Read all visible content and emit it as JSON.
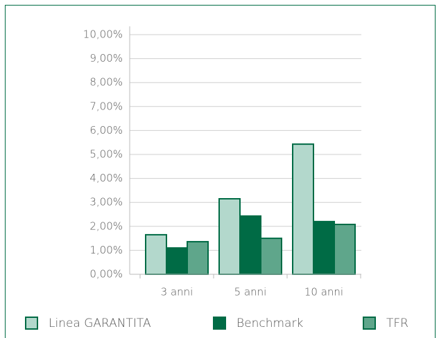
{
  "chart_data": {
    "type": "bar",
    "categories": [
      "3 anni",
      "5 anni",
      "10 anni"
    ],
    "series": [
      {
        "name": "Linea GARANTITA",
        "color": "#b3d8cc",
        "values": [
          1.65,
          3.15,
          5.43
        ]
      },
      {
        "name": "Benchmark",
        "color": "#006b45",
        "values": [
          1.1,
          2.43,
          2.2
        ]
      },
      {
        "name": "TFR",
        "color": "#5fa68b",
        "values": [
          1.36,
          1.5,
          2.08
        ]
      }
    ],
    "ylim": [
      0,
      10
    ],
    "yticks": [
      {
        "value": 0,
        "label": "0,00%"
      },
      {
        "value": 1,
        "label": "1,00%"
      },
      {
        "value": 2,
        "label": "2,00%"
      },
      {
        "value": 3,
        "label": "3,00%"
      },
      {
        "value": 4,
        "label": "4,00%"
      },
      {
        "value": 5,
        "label": "5,00%"
      },
      {
        "value": 6,
        "label": "6,00%"
      },
      {
        "value": 7,
        "label": "7,00%"
      },
      {
        "value": 8,
        "label": "8,00%"
      },
      {
        "value": 9,
        "label": "9,00%"
      },
      {
        "value": 10,
        "label": "10,00%"
      }
    ],
    "grid": true,
    "legend": "bottom"
  }
}
